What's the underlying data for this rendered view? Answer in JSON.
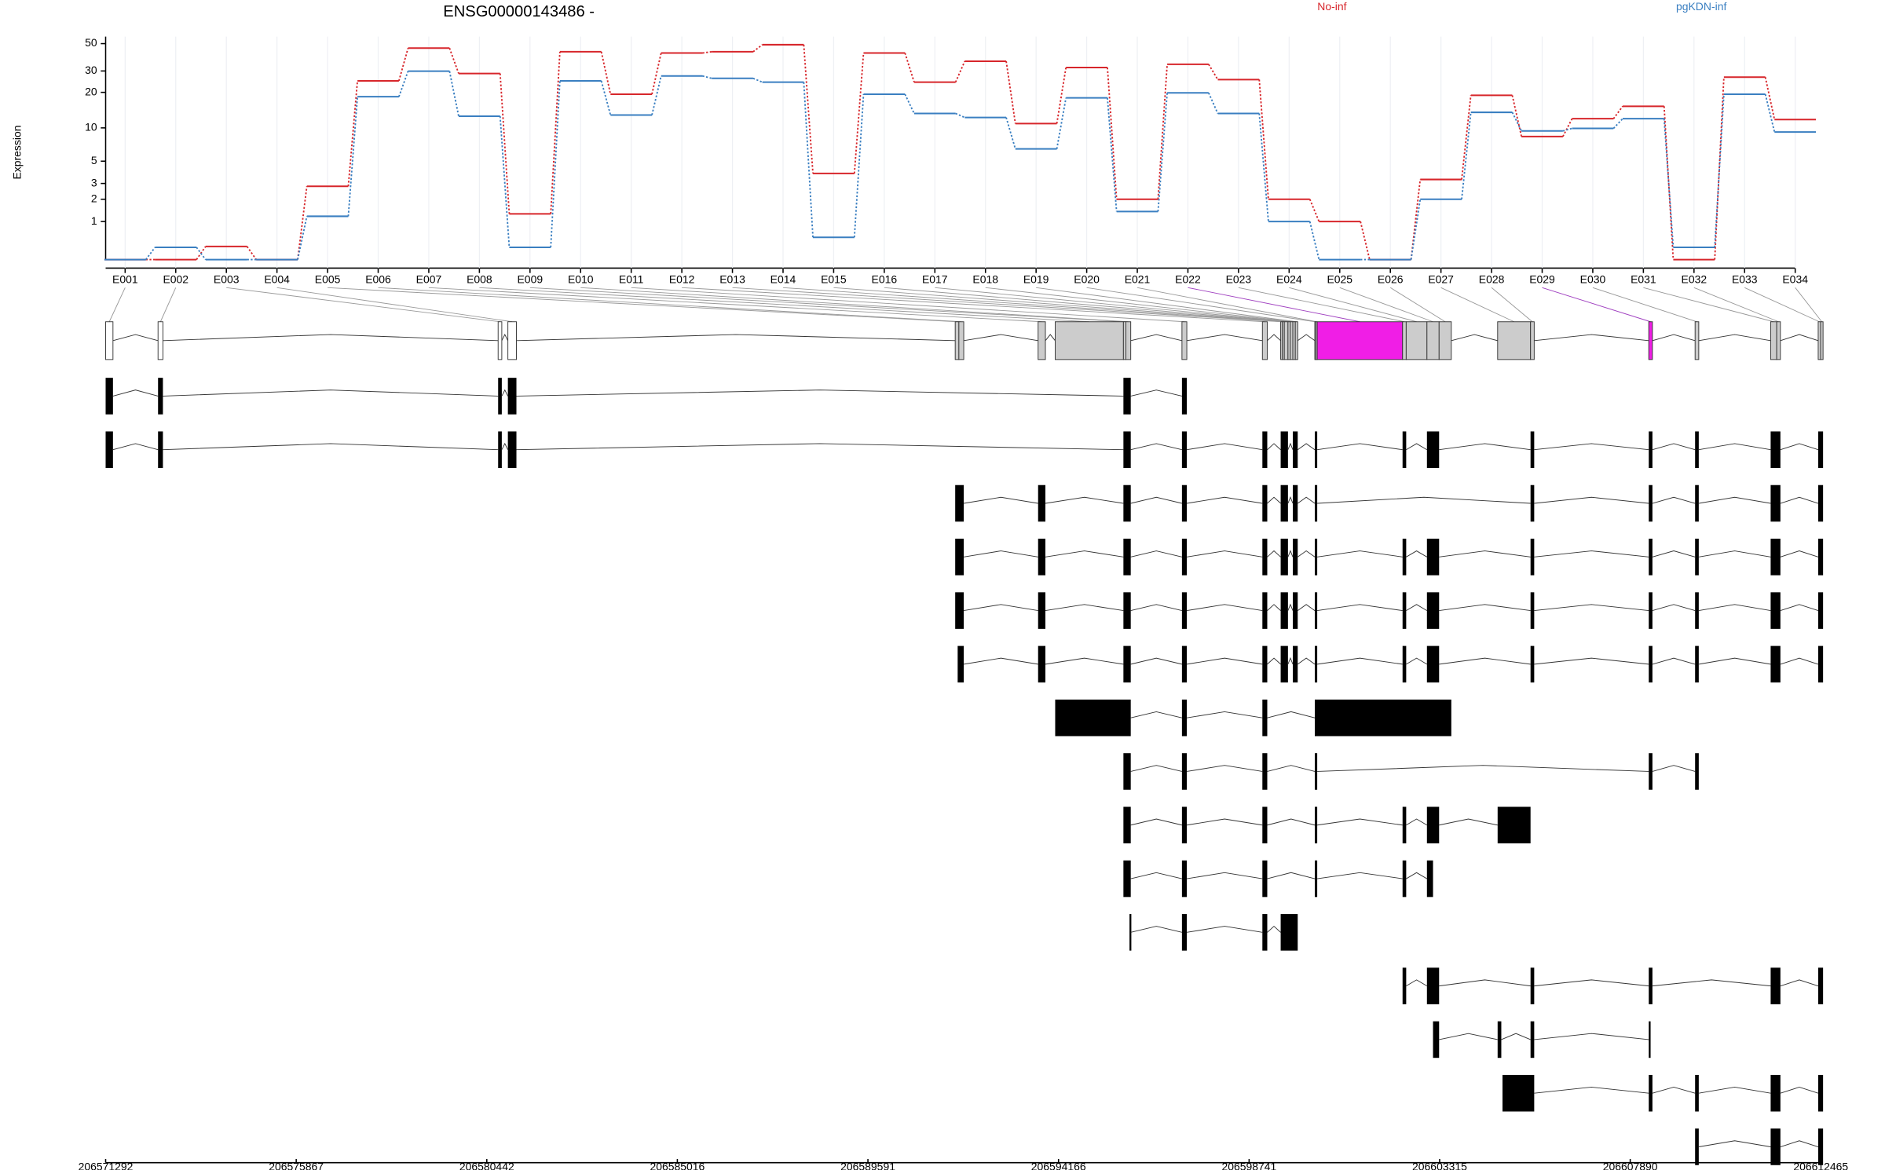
{
  "chart_data": {
    "type": "line",
    "title": "ENSG00000143486 -",
    "ylabel": "Expression",
    "categories": [
      "E001",
      "E002",
      "E003",
      "E004",
      "E005",
      "E006",
      "E007",
      "E008",
      "E009",
      "E010",
      "E011",
      "E012",
      "E013",
      "E014",
      "E015",
      "E016",
      "E017",
      "E018",
      "E019",
      "E020",
      "E021",
      "E022",
      "E023",
      "E024",
      "E025",
      "E026",
      "E027",
      "E028",
      "E029",
      "E030",
      "E031",
      "E032",
      "E033",
      "E034"
    ],
    "series": [
      {
        "name": "No-inf",
        "color": "#d7262b",
        "values": [
          0,
          0,
          0.27,
          0,
          2.8,
          24.9,
          46,
          28.6,
          1.3,
          43,
          19.3,
          42,
          43,
          49,
          3.8,
          42,
          24.3,
          36,
          10.9,
          32,
          2,
          34,
          25.5,
          2,
          1,
          0,
          3.3,
          18.9,
          8.4,
          12,
          15.3,
          0,
          26.7,
          11.8
        ]
      },
      {
        "name": "pgKDN-inf",
        "color": "#3a7fc1",
        "values": [
          0,
          0.25,
          0,
          0,
          1.2,
          18.4,
          29.9,
          12.6,
          0.25,
          24.9,
          12.9,
          27.3,
          26.1,
          24.3,
          0.5,
          19.3,
          13.3,
          12.3,
          6.5,
          18,
          1.4,
          19.8,
          13.3,
          1,
          0,
          0,
          2,
          13.6,
          9.4,
          9.9,
          12,
          0.25,
          19.3,
          9.2
        ]
      }
    ],
    "ylim": [
      0,
      57
    ],
    "yticks": [
      1,
      2,
      3,
      5,
      10,
      20,
      30,
      50
    ],
    "yscale": "log1p",
    "grid": true
  },
  "gene_model": {
    "xlim": [
      206571292,
      206612465
    ],
    "xticks": [
      206571292,
      206575867,
      206580442,
      206585016,
      206589591,
      206594166,
      206598741,
      206603315,
      206607890,
      206612465
    ],
    "exons": [
      [
        206571292,
        206571468
      ],
      [
        206572550,
        206572667
      ],
      [
        206580714,
        206580802
      ],
      [
        206580948,
        206581153
      ],
      [
        206591686,
        206591774
      ],
      [
        206591774,
        206591891
      ],
      [
        206593676,
        206593851
      ],
      [
        206594086,
        206595724
      ],
      [
        206595724,
        206595783
      ],
      [
        206595783,
        206595900
      ],
      [
        206597129,
        206597246
      ],
      [
        206599060,
        206599177
      ],
      [
        206599499,
        206599540
      ],
      [
        206599540,
        206599586
      ],
      [
        206599586,
        206599674
      ],
      [
        206599674,
        206599730
      ],
      [
        206599730,
        206599791
      ],
      [
        206599791,
        206599850
      ],
      [
        206599850,
        206599908
      ],
      [
        206600318,
        206600340
      ],
      [
        206600340,
        206600376
      ],
      [
        206600376,
        206602425
      ],
      [
        206602425,
        206602512
      ],
      [
        206602512,
        206603010
      ],
      [
        206603010,
        206603302
      ],
      [
        206603302,
        206603595
      ],
      [
        206604707,
        206605497
      ],
      [
        206605497,
        206605585
      ],
      [
        206608335,
        206608423
      ],
      [
        206609447,
        206609535
      ],
      [
        206611261,
        206611407
      ],
      [
        206611407,
        206611495
      ],
      [
        206612402,
        206612460
      ],
      [
        206612460,
        206612519
      ]
    ],
    "exon_colors": [
      "#ffffff",
      "#ffffff",
      "#ffffff",
      "#ffffff",
      "#cccccc",
      "#cccccc",
      "#cccccc",
      "#cccccc",
      "#cccccc",
      "#cccccc",
      "#cccccc",
      "#cccccc",
      "#cccccc",
      "#cccccc",
      "#cccccc",
      "#cccccc",
      "#cccccc",
      "#cccccc",
      "#cccccc",
      "#cccccc",
      "#cccccc",
      "#f01ee6",
      "#cccccc",
      "#cccccc",
      "#cccccc",
      "#cccccc",
      "#cccccc",
      "#cccccc",
      "#f01ee6",
      "#cccccc",
      "#cccccc",
      "#cccccc",
      "#cccccc",
      "#cccccc"
    ],
    "transcripts": [
      [
        [
          206571292,
          206571468
        ],
        [
          206572550,
          206572667
        ],
        [
          206580714,
          206580802
        ],
        [
          206580948,
          206581153
        ],
        [
          206595724,
          206595900
        ],
        [
          206597129,
          206597246
        ]
      ],
      [
        [
          206571292,
          206571468
        ],
        [
          206572550,
          206572667
        ],
        [
          206580714,
          206580802
        ],
        [
          206580948,
          206581153
        ],
        [
          206595724,
          206595900
        ],
        [
          206597129,
          206597246
        ],
        [
          206599060,
          206599177
        ],
        [
          206599499,
          206599674
        ],
        [
          206599791,
          206599908
        ],
        [
          206600318,
          206600376
        ],
        [
          206602425,
          206602512
        ],
        [
          206603010,
          206603302
        ],
        [
          206605497,
          206605585
        ],
        [
          206608335,
          206608423
        ],
        [
          206609447,
          206609535
        ],
        [
          206611261,
          206611495
        ],
        [
          206612402,
          206612519
        ]
      ],
      [
        [
          206591686,
          206591891
        ],
        [
          206593676,
          206593851
        ],
        [
          206595724,
          206595900
        ],
        [
          206597129,
          206597246
        ],
        [
          206599060,
          206599177
        ],
        [
          206599499,
          206599674
        ],
        [
          206599791,
          206599908
        ],
        [
          206600318,
          206600376
        ],
        [
          206605497,
          206605585
        ],
        [
          206608335,
          206608423
        ],
        [
          206609447,
          206609535
        ],
        [
          206611261,
          206611495
        ],
        [
          206612402,
          206612519
        ]
      ],
      [
        [
          206591686,
          206591891
        ],
        [
          206593676,
          206593851
        ],
        [
          206595724,
          206595900
        ],
        [
          206597129,
          206597246
        ],
        [
          206599060,
          206599177
        ],
        [
          206599499,
          206599674
        ],
        [
          206599791,
          206599908
        ],
        [
          206600318,
          206600376
        ],
        [
          206602425,
          206602512
        ],
        [
          206603010,
          206603302
        ],
        [
          206605497,
          206605585
        ],
        [
          206608335,
          206608423
        ],
        [
          206609447,
          206609535
        ],
        [
          206611261,
          206611495
        ],
        [
          206612402,
          206612519
        ]
      ],
      [
        [
          206591686,
          206591891
        ],
        [
          206593676,
          206593851
        ],
        [
          206595724,
          206595900
        ],
        [
          206597129,
          206597246
        ],
        [
          206599060,
          206599177
        ],
        [
          206599499,
          206599674
        ],
        [
          206599791,
          206599908
        ],
        [
          206600318,
          206600376
        ],
        [
          206602425,
          206602512
        ],
        [
          206603010,
          206603302
        ],
        [
          206605497,
          206605585
        ],
        [
          206608335,
          206608423
        ],
        [
          206609447,
          206609535
        ],
        [
          206611261,
          206611495
        ],
        [
          206612402,
          206612519
        ]
      ],
      [
        [
          206591745,
          206591891
        ],
        [
          206593676,
          206593851
        ],
        [
          206595724,
          206595900
        ],
        [
          206597129,
          206597246
        ],
        [
          206599060,
          206599177
        ],
        [
          206599499,
          206599674
        ],
        [
          206599791,
          206599908
        ],
        [
          206600318,
          206600376
        ],
        [
          206602425,
          206602512
        ],
        [
          206603010,
          206603302
        ],
        [
          206605497,
          206605585
        ],
        [
          206608335,
          206608423
        ],
        [
          206609447,
          206609535
        ],
        [
          206611261,
          206611495
        ],
        [
          206612402,
          206612519
        ]
      ],
      [
        [
          206594086,
          206595900
        ],
        [
          206597129,
          206597246
        ],
        [
          206599060,
          206599177
        ],
        [
          206600318,
          206603595
        ]
      ],
      [
        [
          206595724,
          206595900
        ],
        [
          206597129,
          206597246
        ],
        [
          206599060,
          206599177
        ],
        [
          206600318,
          206600376
        ],
        [
          206608335,
          206608423
        ],
        [
          206609447,
          206609535
        ]
      ],
      [
        [
          206595724,
          206595900
        ],
        [
          206597129,
          206597246
        ],
        [
          206599060,
          206599177
        ],
        [
          206600318,
          206600376
        ],
        [
          206602425,
          206602512
        ],
        [
          206603010,
          206603302
        ],
        [
          206604707,
          206605497
        ]
      ],
      [
        [
          206595724,
          206595900
        ],
        [
          206597129,
          206597246
        ],
        [
          206599060,
          206599177
        ],
        [
          206600318,
          206600376
        ],
        [
          206602425,
          206602512
        ],
        [
          206603010,
          206603156
        ]
      ],
      [
        [
          206595870,
          206595900
        ],
        [
          206597129,
          206597246
        ],
        [
          206599060,
          206599177
        ],
        [
          206599499,
          206599908
        ]
      ],
      [
        [
          206602425,
          206602512
        ],
        [
          206603010,
          206603302
        ],
        [
          206605497,
          206605585
        ],
        [
          206608335,
          206608423
        ],
        [
          206611261,
          206611495
        ],
        [
          206612402,
          206612519
        ]
      ],
      [
        [
          206603156,
          206603302
        ],
        [
          206604707,
          206604795
        ],
        [
          206605497,
          206605585
        ],
        [
          206608335,
          206608364
        ]
      ],
      [
        [
          206604824,
          206605585
        ],
        [
          206608335,
          206608423
        ],
        [
          206609447,
          206609535
        ],
        [
          206611261,
          206611495
        ],
        [
          206612402,
          206612519
        ]
      ],
      [
        [
          206609447,
          206609535
        ],
        [
          206611261,
          206611495
        ],
        [
          206612402,
          206612519
        ]
      ]
    ]
  }
}
